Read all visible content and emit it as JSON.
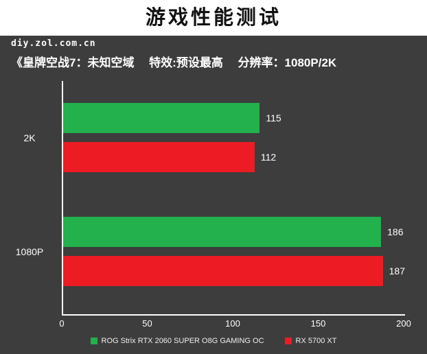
{
  "header": {
    "title": "游戏性能测试"
  },
  "watermark": "diy.zol.com.cn",
  "subtitle": "《皇牌空战7：未知空域　 特效:预设最高　 分辨率：1080P/2K",
  "colors": {
    "background": "#3d3d3d",
    "header_bg": "#ffffff",
    "axis": "#ffffff",
    "green": "#22b14c",
    "red": "#ed1c24"
  },
  "chart_data": {
    "type": "bar",
    "orientation": "horizontal",
    "title": "游戏性能测试",
    "subtitle": "《皇牌空战7：未知空域　特效:预设最高　分辨率：1080P/2K",
    "categories": [
      "2K",
      "1080P"
    ],
    "series": [
      {
        "name": "ROG Strix RTX 2060 SUPER O8G GAMING OC",
        "color": "#22b14c",
        "values": [
          115,
          186
        ]
      },
      {
        "name": "RX 5700 XT",
        "color": "#ed1c24",
        "values": [
          112,
          187
        ]
      }
    ],
    "xlabel": "",
    "ylabel": "",
    "xlim": [
      0,
      200
    ],
    "xticks": [
      0,
      50,
      100,
      150,
      200
    ],
    "grid": false,
    "legend_position": "bottom"
  }
}
